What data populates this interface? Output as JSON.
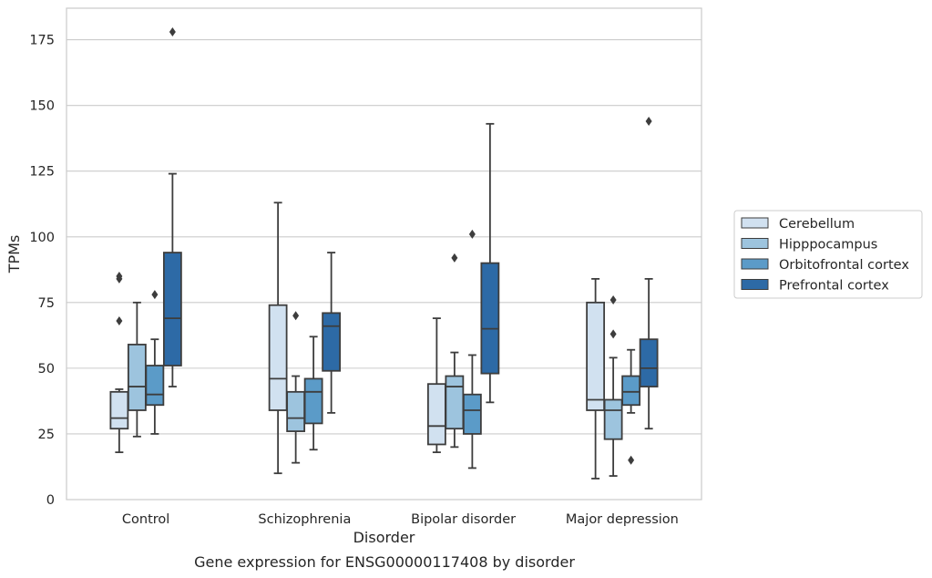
{
  "chart_data": {
    "type": "box",
    "title": "Gene expression for ENSG00000117408 by disorder",
    "xlabel": "Disorder",
    "ylabel": "TPMs",
    "ylim": [
      0,
      187
    ],
    "yticks": [
      0,
      25,
      50,
      75,
      100,
      125,
      150,
      175
    ],
    "grid": true,
    "legend_position": "right",
    "categories": [
      "Control",
      "Schizophrenia",
      "Bipolar disorder",
      "Major depression"
    ],
    "series": [
      {
        "name": "Cerebellum",
        "color": "#d1e1f0",
        "boxes": [
          {
            "whisker_low": 18,
            "q1": 27,
            "median": 31,
            "q3": 41,
            "whisker_high": 42,
            "outliers": [
              68,
              84,
              85
            ]
          },
          {
            "whisker_low": 10,
            "q1": 34,
            "median": 46,
            "q3": 74,
            "whisker_high": 113,
            "outliers": []
          },
          {
            "whisker_low": 18,
            "q1": 21,
            "median": 28,
            "q3": 44,
            "whisker_high": 69,
            "outliers": []
          },
          {
            "whisker_low": 8,
            "q1": 34,
            "median": 38,
            "q3": 75,
            "whisker_high": 84,
            "outliers": []
          }
        ]
      },
      {
        "name": "Hipppocampus",
        "color": "#9dc4de",
        "boxes": [
          {
            "whisker_low": 24,
            "q1": 34,
            "median": 43,
            "q3": 59,
            "whisker_high": 75,
            "outliers": []
          },
          {
            "whisker_low": 14,
            "q1": 26,
            "median": 31,
            "q3": 41,
            "whisker_high": 47,
            "outliers": [
              70
            ]
          },
          {
            "whisker_low": 20,
            "q1": 27,
            "median": 43,
            "q3": 47,
            "whisker_high": 56,
            "outliers": [
              92
            ]
          },
          {
            "whisker_low": 9,
            "q1": 23,
            "median": 34,
            "q3": 38,
            "whisker_high": 54,
            "outliers": [
              63,
              76
            ]
          }
        ]
      },
      {
        "name": "Orbitofrontal cortex",
        "color": "#5b9bc8",
        "boxes": [
          {
            "whisker_low": 25,
            "q1": 36,
            "median": 40,
            "q3": 51,
            "whisker_high": 61,
            "outliers": [
              78
            ]
          },
          {
            "whisker_low": 19,
            "q1": 29,
            "median": 41,
            "q3": 46,
            "whisker_high": 62,
            "outliers": []
          },
          {
            "whisker_low": 12,
            "q1": 25,
            "median": 34,
            "q3": 40,
            "whisker_high": 55,
            "outliers": [
              101
            ]
          },
          {
            "whisker_low": 33,
            "q1": 36,
            "median": 41,
            "q3": 47,
            "whisker_high": 57,
            "outliers": [
              15
            ]
          }
        ]
      },
      {
        "name": "Prefrontal cortex",
        "color": "#2d6aa6",
        "boxes": [
          {
            "whisker_low": 43,
            "q1": 51,
            "median": 69,
            "q3": 94,
            "whisker_high": 124,
            "outliers": [
              178
            ]
          },
          {
            "whisker_low": 33,
            "q1": 49,
            "median": 66,
            "q3": 71,
            "whisker_high": 94,
            "outliers": []
          },
          {
            "whisker_low": 37,
            "q1": 48,
            "median": 65,
            "q3": 90,
            "whisker_high": 143,
            "outliers": []
          },
          {
            "whisker_low": 27,
            "q1": 43,
            "median": 50,
            "q3": 61,
            "whisker_high": 84,
            "outliers": [
              144
            ]
          }
        ]
      }
    ]
  }
}
